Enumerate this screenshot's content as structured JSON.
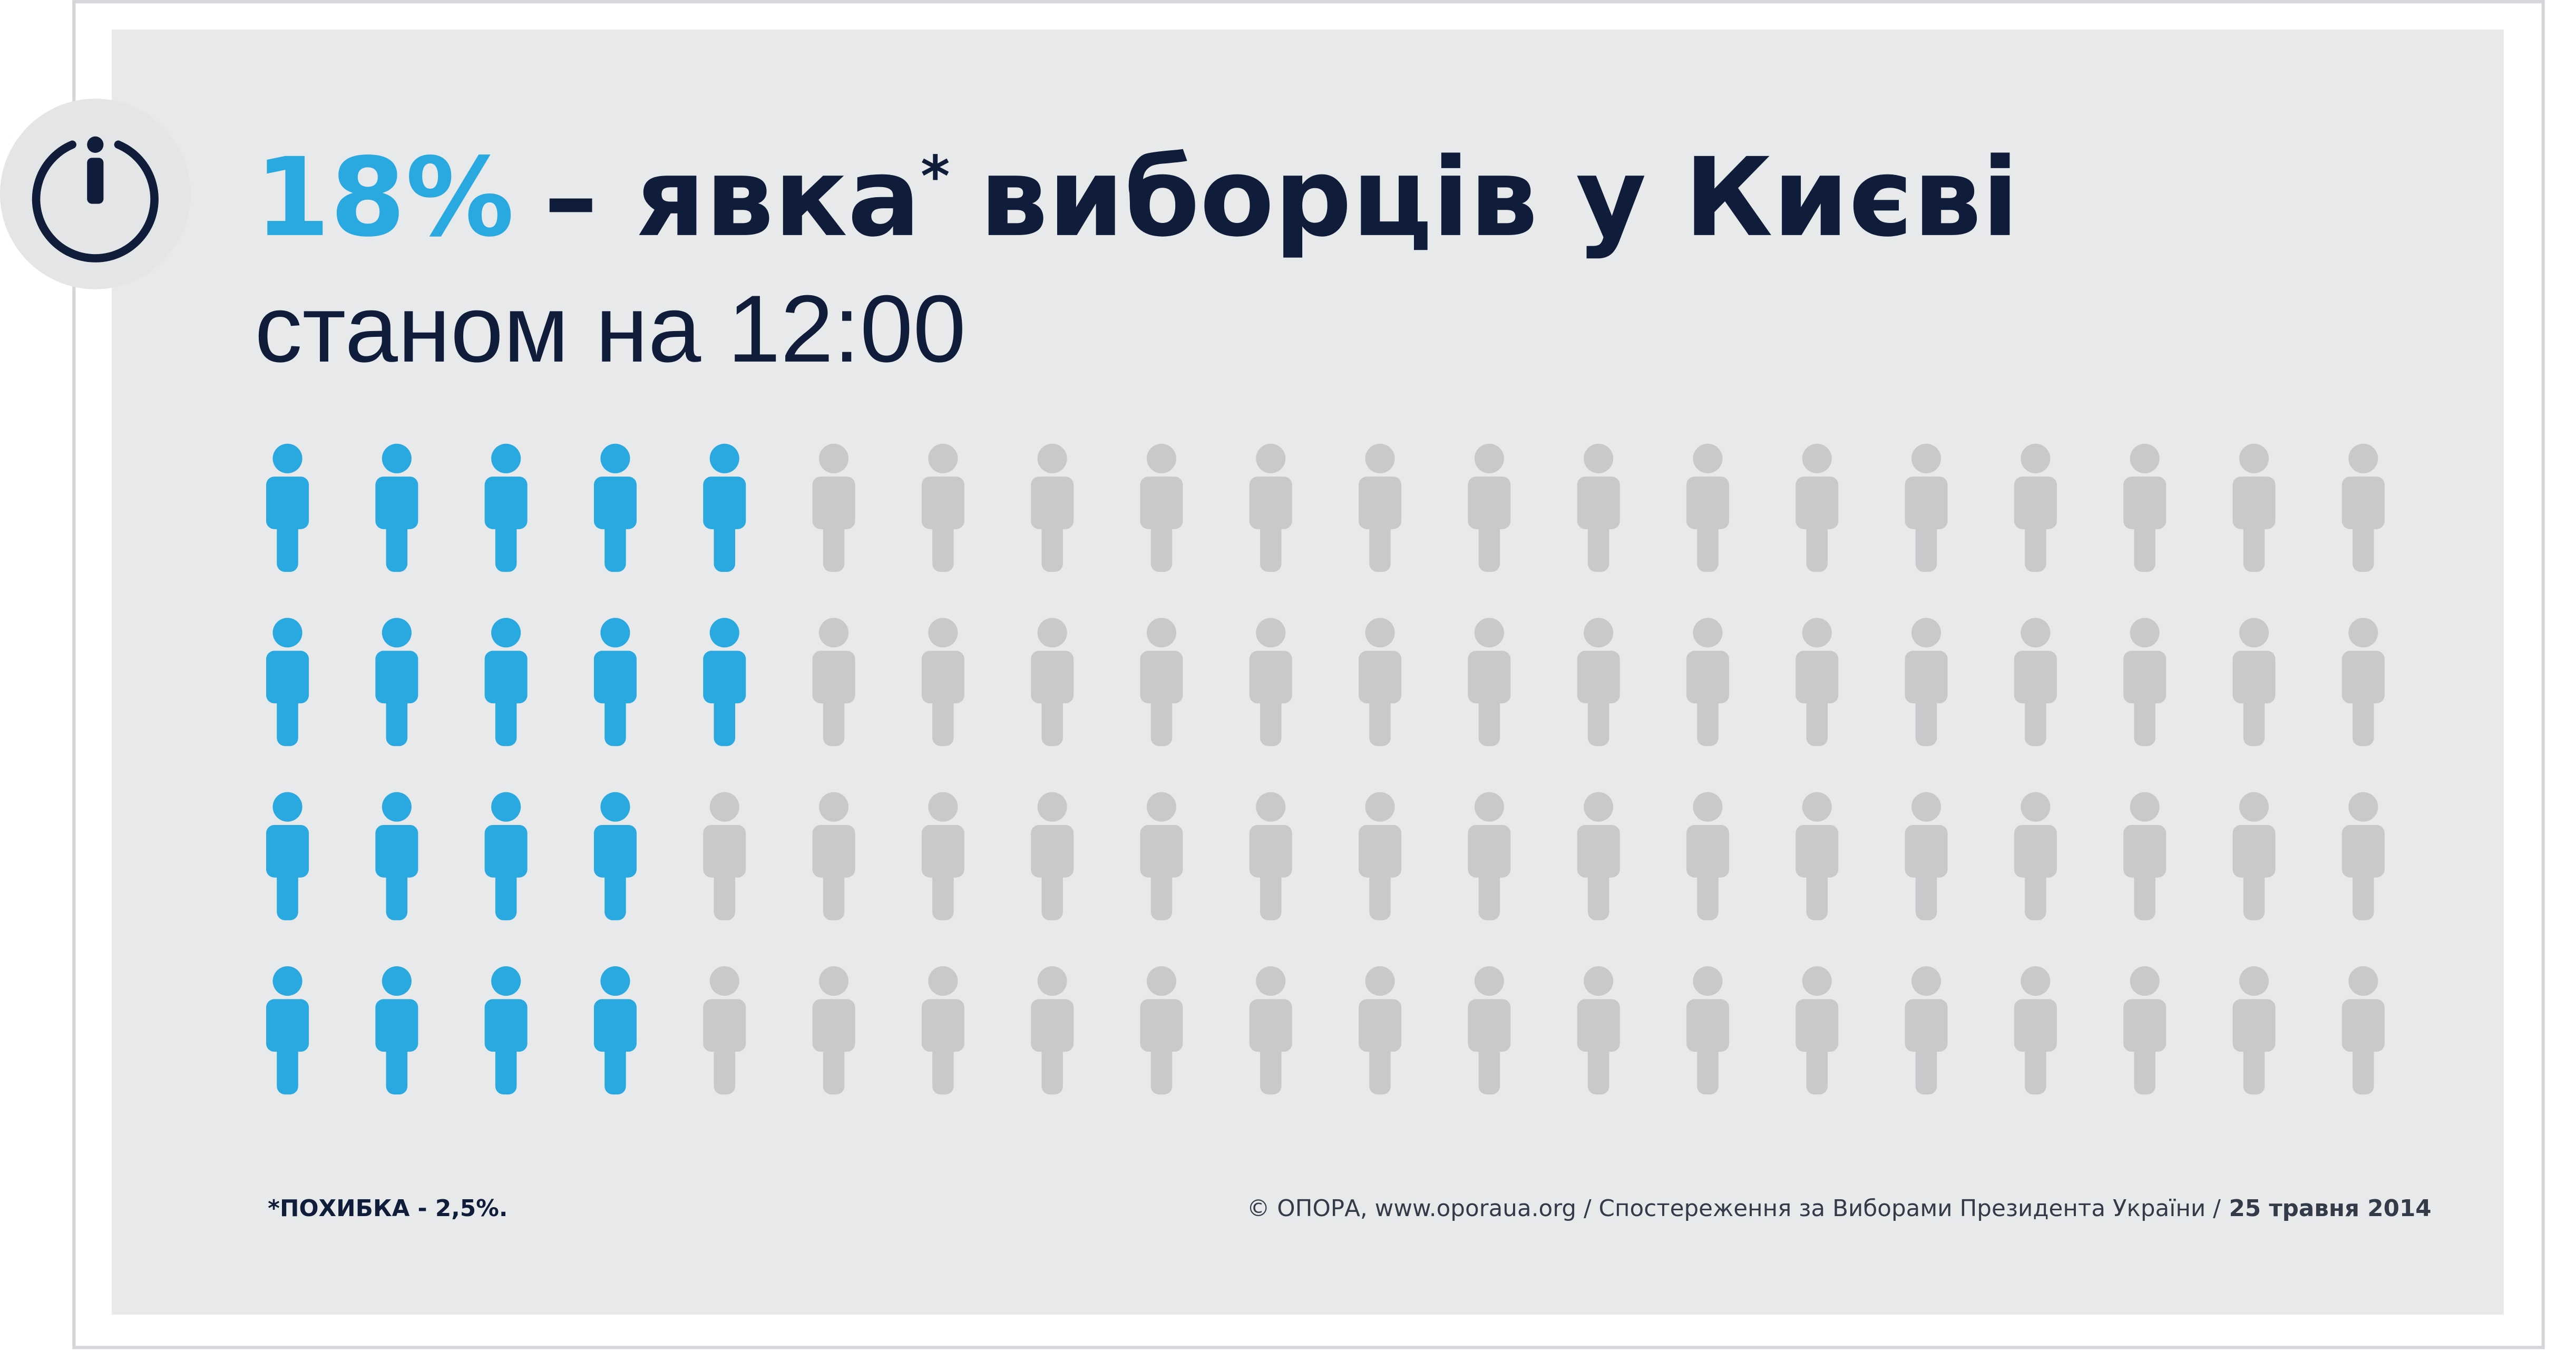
{
  "chart_data": {
    "type": "pictograph",
    "title_parts": [
      "18%",
      "– явка",
      "*",
      "виборців у Києві"
    ],
    "subtitle": "станом на 12:00",
    "rows": [
      5,
      5,
      4,
      4
    ],
    "columns": 20,
    "color": "#29a9e0",
    "base_color": "#c8c9cb",
    "footnote": "*ПОХИБКА - 2,5%.",
    "source": "© ОПОРА, www.oporaua.org / Спостереження за Виборами Президента України /",
    "date": "25 травня 2014"
  }
}
